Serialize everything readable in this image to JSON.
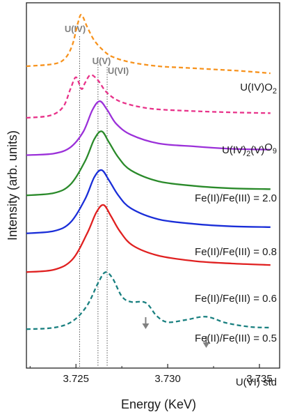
{
  "chart_data": {
    "type": "line",
    "xlabel": "Energy (KeV)",
    "ylabel": "Intensity (arb. units)",
    "xlim": [
      3.7223,
      3.7361
    ],
    "x_ticks": [
      "3.725",
      "3.730",
      "3.735"
    ],
    "x_tick_values": [
      3.725,
      3.73,
      3.735
    ],
    "grid": false,
    "reference_lines": [
      {
        "label": "U(IV)",
        "x": 3.7252
      },
      {
        "label": "U(V)",
        "x": 3.7262
      },
      {
        "label": "U(VI)",
        "x": 3.7267
      }
    ],
    "arrows_at_x": [
      3.7288,
      3.7321
    ],
    "series": [
      {
        "name": "U(IV)O2",
        "label_main": "U(IV)O",
        "label_sub": "2",
        "label_tail": "",
        "color": "#f7931e",
        "dash": true,
        "baseline_frac": 0.76,
        "points": [
          [
            3.7223,
            0.31
          ],
          [
            3.7238,
            0.34
          ],
          [
            3.7244,
            0.41
          ],
          [
            3.7248,
            0.58
          ],
          [
            3.7251,
            0.86
          ],
          [
            3.7253,
            0.97
          ],
          [
            3.7256,
            0.82
          ],
          [
            3.726,
            0.64
          ],
          [
            3.7265,
            0.51
          ],
          [
            3.727,
            0.43
          ],
          [
            3.728,
            0.36
          ],
          [
            3.7295,
            0.31
          ],
          [
            3.731,
            0.29
          ],
          [
            3.7325,
            0.27
          ],
          [
            3.734,
            0.25
          ],
          [
            3.7356,
            0.22
          ]
        ]
      },
      {
        "name": "U(IV)2(V)2O9",
        "label_main": "U(IV)",
        "label_sub": "2",
        "label_tail": "(V)",
        "color": "#e8338a",
        "dash": true,
        "baseline_frac": 0.668,
        "points": [
          [
            3.7223,
            0.08
          ],
          [
            3.7236,
            0.11
          ],
          [
            3.7243,
            0.22
          ],
          [
            3.7247,
            0.45
          ],
          [
            3.725,
            0.6
          ],
          [
            3.7253,
            0.45
          ],
          [
            3.7255,
            0.53
          ],
          [
            3.7258,
            0.63
          ],
          [
            3.7262,
            0.56
          ],
          [
            3.7267,
            0.4
          ],
          [
            3.7275,
            0.28
          ],
          [
            3.729,
            0.2
          ],
          [
            3.731,
            0.17
          ],
          [
            3.7335,
            0.15
          ],
          [
            3.7356,
            0.14
          ]
        ]
      },
      {
        "name": "Fe(II)/Fe(III) = 2.0",
        "label_main": "Fe(II)/Fe(III) = 2.0",
        "label_sub": "",
        "label_tail": "",
        "color": "#9b30d9",
        "dash": false,
        "baseline_frac": 0.566,
        "points": [
          [
            3.7223,
            0.08
          ],
          [
            3.7238,
            0.1
          ],
          [
            3.7247,
            0.18
          ],
          [
            3.7254,
            0.38
          ],
          [
            3.7259,
            0.66
          ],
          [
            3.7263,
            0.77
          ],
          [
            3.7267,
            0.66
          ],
          [
            3.7272,
            0.48
          ],
          [
            3.728,
            0.34
          ],
          [
            3.7295,
            0.23
          ],
          [
            3.7315,
            0.19
          ],
          [
            3.7335,
            0.16
          ],
          [
            3.7356,
            0.15
          ]
        ]
      },
      {
        "name": "Fe(II)/Fe(III) = 0.8",
        "label_main": "Fe(II)/Fe(III) = 0.8",
        "label_sub": "",
        "label_tail": "",
        "color": "#2a8a2a",
        "dash": false,
        "baseline_frac": 0.46,
        "points": [
          [
            3.7223,
            0.06
          ],
          [
            3.7238,
            0.09
          ],
          [
            3.7247,
            0.2
          ],
          [
            3.7255,
            0.5
          ],
          [
            3.726,
            0.78
          ],
          [
            3.7264,
            0.88
          ],
          [
            3.7268,
            0.74
          ],
          [
            3.7273,
            0.55
          ],
          [
            3.728,
            0.38
          ],
          [
            3.7295,
            0.24
          ],
          [
            3.7315,
            0.18
          ],
          [
            3.7335,
            0.15
          ],
          [
            3.7356,
            0.14
          ]
        ]
      },
      {
        "name": "Fe(II)/Fe(III) = 0.6",
        "label_main": "Fe(II)/Fe(III) = 0.6",
        "label_sub": "",
        "label_tail": "",
        "color": "#1a2ed8",
        "dash": false,
        "baseline_frac": 0.356,
        "points": [
          [
            3.7223,
            0.06
          ],
          [
            3.7238,
            0.09
          ],
          [
            3.7247,
            0.2
          ],
          [
            3.7255,
            0.5
          ],
          [
            3.726,
            0.78
          ],
          [
            3.7264,
            0.87
          ],
          [
            3.7268,
            0.74
          ],
          [
            3.7273,
            0.55
          ],
          [
            3.728,
            0.38
          ],
          [
            3.7295,
            0.24
          ],
          [
            3.7315,
            0.18
          ],
          [
            3.7335,
            0.15
          ],
          [
            3.7356,
            0.14
          ]
        ]
      },
      {
        "name": "Fe(II)/Fe(III) = 0.5",
        "label_main": "Fe(II)/Fe(III) = 0.5",
        "label_sub": "",
        "label_tail": "",
        "color": "#e02020",
        "dash": false,
        "baseline_frac": 0.25,
        "points": [
          [
            3.7223,
            0.06
          ],
          [
            3.7238,
            0.09
          ],
          [
            3.7248,
            0.22
          ],
          [
            3.7256,
            0.55
          ],
          [
            3.7261,
            0.82
          ],
          [
            3.7265,
            0.92
          ],
          [
            3.7269,
            0.78
          ],
          [
            3.7274,
            0.58
          ],
          [
            3.7281,
            0.4
          ],
          [
            3.7295,
            0.27
          ],
          [
            3.7315,
            0.2
          ],
          [
            3.7335,
            0.17
          ],
          [
            3.7356,
            0.15
          ]
        ]
      },
      {
        "name": "U(VI) std",
        "label_main": "U(VI) std",
        "label_sub": "",
        "label_tail": "",
        "color": "#1a8080",
        "dash": true,
        "baseline_frac": 0.1,
        "points": [
          [
            3.7223,
            0.03
          ],
          [
            3.7238,
            0.05
          ],
          [
            3.7248,
            0.13
          ],
          [
            3.7256,
            0.33
          ],
          [
            3.7262,
            0.62
          ],
          [
            3.7266,
            0.76
          ],
          [
            3.727,
            0.68
          ],
          [
            3.7275,
            0.45
          ],
          [
            3.728,
            0.38
          ],
          [
            3.7288,
            0.37
          ],
          [
            3.7294,
            0.2
          ],
          [
            3.73,
            0.12
          ],
          [
            3.731,
            0.15
          ],
          [
            3.7321,
            0.19
          ],
          [
            3.7332,
            0.11
          ],
          [
            3.7345,
            0.06
          ],
          [
            3.7356,
            0.05
          ]
        ]
      }
    ]
  }
}
